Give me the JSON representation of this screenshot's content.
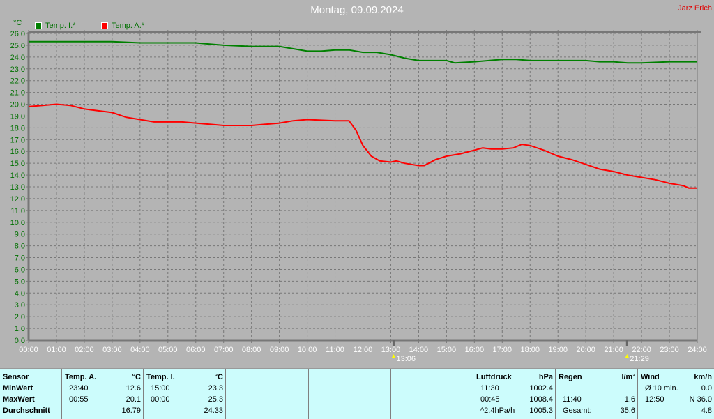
{
  "title": "Montag, 09.09.2024",
  "author": "Jarz Erich",
  "chart_data": {
    "type": "line",
    "title": "Montag, 09.09.2024",
    "ylabel": "°C",
    "ylim": [
      0,
      26
    ],
    "xlim": [
      0,
      24
    ],
    "grid": true,
    "legend_placement": "top-left",
    "x_ticks": [
      "00:00",
      "01:00",
      "02:00",
      "03:00",
      "04:00",
      "05:00",
      "06:00",
      "07:00",
      "08:00",
      "09:00",
      "10:00",
      "11:00",
      "12:00",
      "13:00",
      "14:00",
      "15:00",
      "16:00",
      "17:00",
      "18:00",
      "19:00",
      "20:00",
      "21:00",
      "22:00",
      "23:00",
      "24:00"
    ],
    "annotations": [
      {
        "icon": "sunrise-icon",
        "x": 13.1,
        "label": "13:06"
      },
      {
        "icon": "sunset-icon",
        "x": 21.48,
        "label": "21:29"
      }
    ],
    "series": [
      {
        "name": "Temp. I.*",
        "color": "#008000",
        "x": [
          0,
          3,
          4,
          6,
          6.5,
          7,
          8,
          9,
          9.5,
          10,
          10.5,
          11,
          11.5,
          12,
          12.5,
          13,
          13.5,
          14,
          15,
          15.3,
          16,
          17,
          17.5,
          18,
          19,
          20,
          20.5,
          21,
          21.5,
          22,
          23,
          24
        ],
        "y": [
          25.3,
          25.3,
          25.2,
          25.2,
          25.1,
          25.0,
          24.9,
          24.9,
          24.7,
          24.5,
          24.5,
          24.6,
          24.6,
          24.4,
          24.4,
          24.2,
          23.9,
          23.7,
          23.7,
          23.5,
          23.6,
          23.8,
          23.8,
          23.7,
          23.7,
          23.7,
          23.6,
          23.6,
          23.5,
          23.5,
          23.6,
          23.6
        ]
      },
      {
        "name": "Temp. A.*",
        "color": "#ff0000",
        "x": [
          0,
          0.5,
          1,
          1.5,
          2,
          3,
          3.5,
          4,
          4.5,
          5,
          5.5,
          6,
          6.5,
          7,
          7.5,
          8,
          8.5,
          9,
          9.5,
          10,
          11,
          11.5,
          11.75,
          12,
          12.3,
          12.6,
          13,
          13.2,
          13.5,
          14,
          14.2,
          14.6,
          15,
          15.5,
          16,
          16.3,
          16.6,
          17,
          17.4,
          17.7,
          18,
          18.5,
          19,
          19.5,
          20,
          20.5,
          21,
          21.5,
          22,
          22.5,
          23,
          23.5,
          23.7,
          24
        ],
        "y": [
          19.8,
          19.9,
          20.0,
          19.9,
          19.6,
          19.3,
          18.9,
          18.7,
          18.5,
          18.5,
          18.5,
          18.4,
          18.3,
          18.2,
          18.2,
          18.2,
          18.3,
          18.4,
          18.6,
          18.7,
          18.6,
          18.6,
          17.8,
          16.5,
          15.6,
          15.2,
          15.1,
          15.2,
          15.0,
          14.8,
          14.8,
          15.3,
          15.6,
          15.8,
          16.1,
          16.3,
          16.2,
          16.2,
          16.3,
          16.6,
          16.5,
          16.1,
          15.6,
          15.3,
          14.9,
          14.5,
          14.3,
          14.0,
          13.8,
          13.6,
          13.3,
          13.1,
          12.9,
          12.9
        ]
      }
    ]
  },
  "table": {
    "sensor": {
      "h": "Sensor",
      "r": [
        "MinWert",
        "MaxWert",
        "Durchschnitt"
      ]
    },
    "tempA": {
      "h": "Temp. A.",
      "u": "°C",
      "r": [
        [
          "23:40",
          "12.6"
        ],
        [
          "00:55",
          "20.1"
        ],
        [
          "",
          "16.79"
        ]
      ]
    },
    "tempI": {
      "h": "Temp. I.",
      "u": "°C",
      "r": [
        [
          "15:00",
          "23.3"
        ],
        [
          "00:00",
          "25.3"
        ],
        [
          "",
          "24.33"
        ]
      ]
    },
    "luft": {
      "h": "Luftdruck",
      "u": "hPa",
      "r": [
        [
          "11:30",
          "1002.4"
        ],
        [
          "00:45",
          "1008.4"
        ],
        [
          "^2.4hPa/h",
          "1005.3"
        ]
      ]
    },
    "regen": {
      "h": "Regen",
      "u": "l/m²",
      "r": [
        [
          "",
          ""
        ],
        [
          "11:40",
          "1.6"
        ],
        [
          "Gesamt:",
          "35.6"
        ]
      ]
    },
    "wind": {
      "h": "Wind",
      "u": "km/h",
      "r": [
        [
          "Ø 10 min.",
          "0.0"
        ],
        [
          "12:50",
          "N 36.0"
        ],
        [
          "",
          "4.8"
        ]
      ]
    }
  }
}
